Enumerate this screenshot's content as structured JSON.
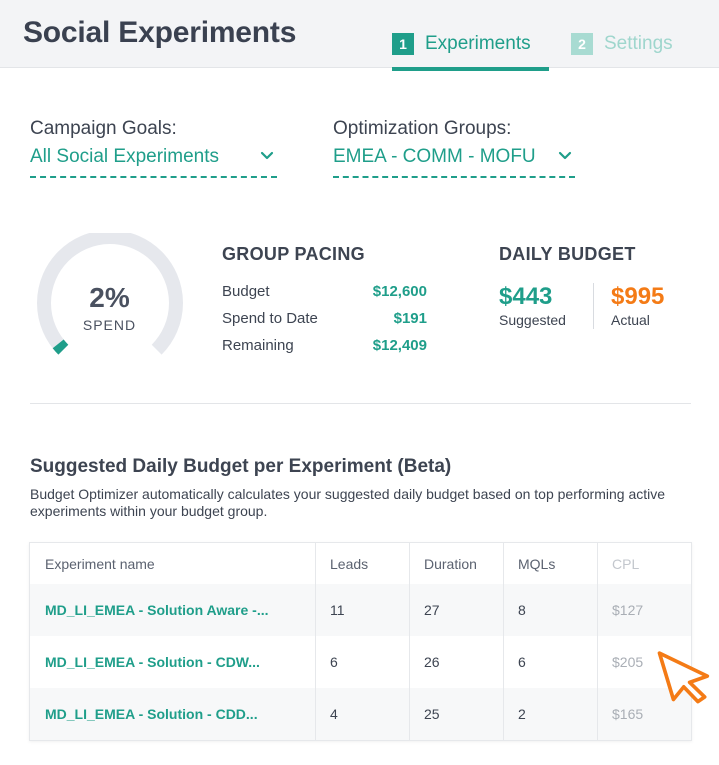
{
  "header": {
    "title": "Social Experiments",
    "tabs": [
      {
        "num": "1",
        "label": "Experiments",
        "active": true
      },
      {
        "num": "2",
        "label": "Settings",
        "active": false
      }
    ]
  },
  "filters": {
    "campaign_goals": {
      "label": "Campaign Goals:",
      "value": "All Social Experiments",
      "icon": "chevron-down-icon"
    },
    "optimization_groups": {
      "label": "Optimization Groups:",
      "value": "EMEA - COMM - MOFU",
      "icon": "chevron-down-icon"
    }
  },
  "gauge": {
    "percent_text": "2%",
    "label": "SPEND",
    "fraction": 0.02
  },
  "group_pacing": {
    "title": "GROUP PACING",
    "rows": [
      {
        "label": "Budget",
        "value": "$12,600"
      },
      {
        "label": "Spend to Date",
        "value": "$191"
      },
      {
        "label": "Remaining",
        "value": "$12,409"
      }
    ]
  },
  "daily_budget": {
    "title": "DAILY BUDGET",
    "suggested": {
      "value": "$443",
      "label": "Suggested"
    },
    "actual": {
      "value": "$995",
      "label": "Actual"
    }
  },
  "suggested_section": {
    "title": "Suggested Daily Budget per Experiment (Beta)",
    "description": "Budget Optimizer automatically calculates your suggested daily budget based on top performing active experiments within your budget group."
  },
  "table": {
    "columns": [
      "Experiment name",
      "Leads",
      "Duration",
      "MQLs",
      "CPL"
    ],
    "rows": [
      {
        "name": "MD_LI_EMEA - Solution Aware -...",
        "leads": "11",
        "duration": "27",
        "mqls": "8",
        "cpl": "$127"
      },
      {
        "name": "MD_LI_EMEA - Solution - CDW...",
        "leads": "6",
        "duration": "26",
        "mqls": "6",
        "cpl": "$205"
      },
      {
        "name": "MD_LI_EMEA - Solution - CDD...",
        "leads": "4",
        "duration": "25",
        "mqls": "2",
        "cpl": "$165"
      }
    ]
  },
  "colors": {
    "accent": "#1f9e8a",
    "actual_orange": "#f47b16",
    "gauge_track": "#e6e8ed",
    "cursor": "#f47b16"
  },
  "icons": {
    "cursor": "mouse-pointer-icon"
  }
}
